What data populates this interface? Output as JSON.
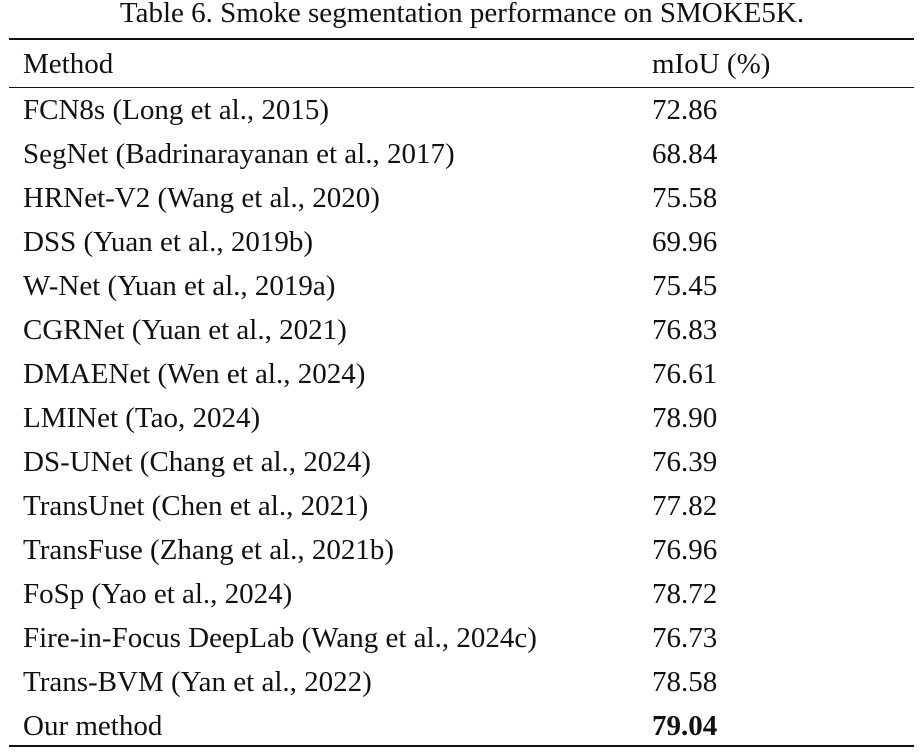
{
  "caption": "Table 6. Smoke segmentation performance on SMOKE5K.",
  "table": {
    "headers": [
      "Method",
      "mIoU (%)"
    ],
    "rows": [
      {
        "method": "FCN8s (Long et al., 2015)",
        "miou": "72.86",
        "bold": false
      },
      {
        "method": "SegNet (Badrinarayanan et al., 2017)",
        "miou": "68.84",
        "bold": false
      },
      {
        "method": "HRNet-V2 (Wang et al., 2020)",
        "miou": "75.58",
        "bold": false
      },
      {
        "method": "DSS (Yuan et al., 2019b)",
        "miou": "69.96",
        "bold": false
      },
      {
        "method": "W-Net (Yuan et al., 2019a)",
        "miou": "75.45",
        "bold": false
      },
      {
        "method": "CGRNet (Yuan et al., 2021)",
        "miou": "76.83",
        "bold": false
      },
      {
        "method": "DMAENet (Wen et al., 2024)",
        "miou": "76.61",
        "bold": false
      },
      {
        "method": "LMINet (Tao, 2024)",
        "miou": "78.90",
        "bold": false
      },
      {
        "method": "DS-UNet (Chang et al., 2024)",
        "miou": "76.39",
        "bold": false
      },
      {
        "method": "TransUnet (Chen et al., 2021)",
        "miou": "77.82",
        "bold": false
      },
      {
        "method": "TransFuse (Zhang et al., 2021b)",
        "miou": "76.96",
        "bold": false
      },
      {
        "method": "FoSp (Yao et al., 2024)",
        "miou": "78.72",
        "bold": false
      },
      {
        "method": "Fire-in-Focus DeepLab (Wang et al., 2024c)",
        "miou": "76.73",
        "bold": false
      },
      {
        "method": "Trans-BVM (Yan et al., 2022)",
        "miou": "78.58",
        "bold": false
      },
      {
        "method": "Our method",
        "miou": "79.04",
        "bold": true
      }
    ]
  }
}
